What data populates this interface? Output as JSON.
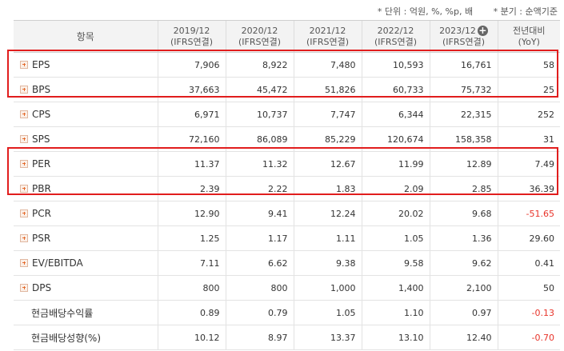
{
  "notes": {
    "unit": "* 단위 : 억원, %, %p, 배",
    "quarter": "* 분기 : 순액기준"
  },
  "header": {
    "item_label": "항목",
    "periods": [
      {
        "year": "2019/12",
        "basis": "(IFRS연결)"
      },
      {
        "year": "2020/12",
        "basis": "(IFRS연결)"
      },
      {
        "year": "2021/12",
        "basis": "(IFRS연결)"
      },
      {
        "year": "2022/12",
        "basis": "(IFRS연결)"
      },
      {
        "year": "2023/12",
        "basis": "(IFRS연결)"
      }
    ],
    "yoy_label": "전년대비",
    "yoy_sub": "(YoY)",
    "expand_icon": "+"
  },
  "rows": [
    {
      "label": "EPS",
      "expandable": true,
      "values": [
        "7,906",
        "8,922",
        "7,480",
        "10,593",
        "16,761"
      ],
      "yoy": "58"
    },
    {
      "label": "BPS",
      "expandable": true,
      "values": [
        "37,663",
        "45,472",
        "51,826",
        "60,733",
        "75,732"
      ],
      "yoy": "25"
    },
    {
      "label": "CPS",
      "expandable": true,
      "values": [
        "6,971",
        "10,737",
        "7,747",
        "6,344",
        "22,315"
      ],
      "yoy": "252"
    },
    {
      "label": "SPS",
      "expandable": true,
      "values": [
        "72,160",
        "86,089",
        "85,229",
        "120,674",
        "158,358"
      ],
      "yoy": "31"
    },
    {
      "label": "PER",
      "expandable": true,
      "values": [
        "11.37",
        "11.32",
        "12.67",
        "11.99",
        "12.89"
      ],
      "yoy": "7.49"
    },
    {
      "label": "PBR",
      "expandable": true,
      "values": [
        "2.39",
        "2.22",
        "1.83",
        "2.09",
        "2.85"
      ],
      "yoy": "36.39"
    },
    {
      "label": "PCR",
      "expandable": true,
      "values": [
        "12.90",
        "9.41",
        "12.24",
        "20.02",
        "9.68"
      ],
      "yoy": "-51.65"
    },
    {
      "label": "PSR",
      "expandable": true,
      "values": [
        "1.25",
        "1.17",
        "1.11",
        "1.05",
        "1.36"
      ],
      "yoy": "29.60"
    },
    {
      "label": "EV/EBITDA",
      "expandable": true,
      "values": [
        "7.11",
        "6.62",
        "9.38",
        "9.58",
        "9.62"
      ],
      "yoy": "0.41"
    },
    {
      "label": "DPS",
      "expandable": true,
      "values": [
        "800",
        "800",
        "1,000",
        "1,400",
        "2,100"
      ],
      "yoy": "50"
    },
    {
      "label": "현금배당수익률",
      "expandable": false,
      "values": [
        "0.89",
        "0.79",
        "1.05",
        "1.10",
        "0.97"
      ],
      "yoy": "-0.13"
    },
    {
      "label": "현금배당성향(%)",
      "expandable": false,
      "values": [
        "10.12",
        "8.97",
        "13.37",
        "13.10",
        "12.40"
      ],
      "yoy": "-0.70"
    }
  ],
  "colors": {
    "highlight_border": "#e11d1d",
    "negative": "#e8342a",
    "expand_icon": "#e56b2c"
  }
}
